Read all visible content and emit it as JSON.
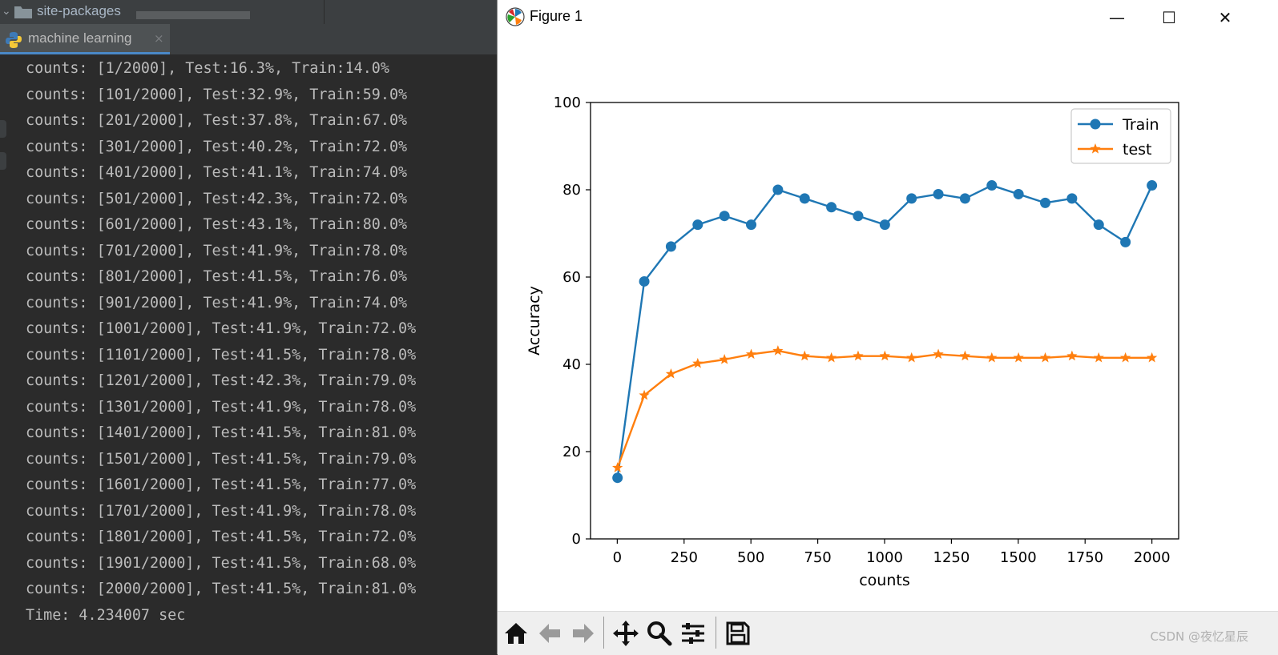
{
  "ide": {
    "tree_folder_label": "site-packages",
    "run_tab_label": "machine learning",
    "tab_close_glyph": "×",
    "console_lines": [
      "counts: [1/2000], Test:16.3%, Train:14.0%",
      "counts: [101/2000], Test:32.9%, Train:59.0%",
      "counts: [201/2000], Test:37.8%, Train:67.0%",
      "counts: [301/2000], Test:40.2%, Train:72.0%",
      "counts: [401/2000], Test:41.1%, Train:74.0%",
      "counts: [501/2000], Test:42.3%, Train:72.0%",
      "counts: [601/2000], Test:43.1%, Train:80.0%",
      "counts: [701/2000], Test:41.9%, Train:78.0%",
      "counts: [801/2000], Test:41.5%, Train:76.0%",
      "counts: [901/2000], Test:41.9%, Train:74.0%",
      "counts: [1001/2000], Test:41.9%, Train:72.0%",
      "counts: [1101/2000], Test:41.5%, Train:78.0%",
      "counts: [1201/2000], Test:42.3%, Train:79.0%",
      "counts: [1301/2000], Test:41.9%, Train:78.0%",
      "counts: [1401/2000], Test:41.5%, Train:81.0%",
      "counts: [1501/2000], Test:41.5%, Train:79.0%",
      "counts: [1601/2000], Test:41.5%, Train:77.0%",
      "counts: [1701/2000], Test:41.9%, Train:78.0%",
      "counts: [1801/2000], Test:41.5%, Train:72.0%",
      "counts: [1901/2000], Test:41.5%, Train:68.0%",
      "counts: [2000/2000], Test:41.5%, Train:81.0%",
      "Time: 4.234007 sec"
    ]
  },
  "figure": {
    "title": "Figure 1",
    "window_buttons": {
      "minimize": "—",
      "maximize": "☐",
      "close": "✕"
    },
    "toolbar_icons": [
      "home-icon",
      "back-icon",
      "forward-icon",
      "pan-icon",
      "zoom-icon",
      "configure-subplots-icon",
      "save-icon"
    ],
    "watermark": "CSDN @夜忆星辰"
  },
  "chart_data": {
    "type": "line",
    "title": "",
    "xlabel": "counts",
    "ylabel": "Accuracy",
    "xlim": [
      -100,
      2100
    ],
    "ylim": [
      0,
      100
    ],
    "xticks": [
      0,
      250,
      500,
      750,
      1000,
      1250,
      1500,
      1750,
      2000
    ],
    "yticks": [
      0,
      20,
      40,
      60,
      80,
      100
    ],
    "grid": false,
    "legend_position": "upper right",
    "x": [
      1,
      101,
      201,
      301,
      401,
      501,
      601,
      701,
      801,
      901,
      1001,
      1101,
      1201,
      1301,
      1401,
      1501,
      1601,
      1701,
      1801,
      1901,
      2000
    ],
    "series": [
      {
        "name": "Train",
        "color": "#1f77b4",
        "marker": "circle",
        "values": [
          14.0,
          59.0,
          67.0,
          72.0,
          74.0,
          72.0,
          80.0,
          78.0,
          76.0,
          74.0,
          72.0,
          78.0,
          79.0,
          78.0,
          81.0,
          79.0,
          77.0,
          78.0,
          72.0,
          68.0,
          81.0
        ]
      },
      {
        "name": "test",
        "color": "#ff7f0e",
        "marker": "star",
        "values": [
          16.3,
          32.9,
          37.8,
          40.2,
          41.1,
          42.3,
          43.1,
          41.9,
          41.5,
          41.9,
          41.9,
          41.5,
          42.3,
          41.9,
          41.5,
          41.5,
          41.5,
          41.9,
          41.5,
          41.5,
          41.5
        ]
      }
    ]
  }
}
